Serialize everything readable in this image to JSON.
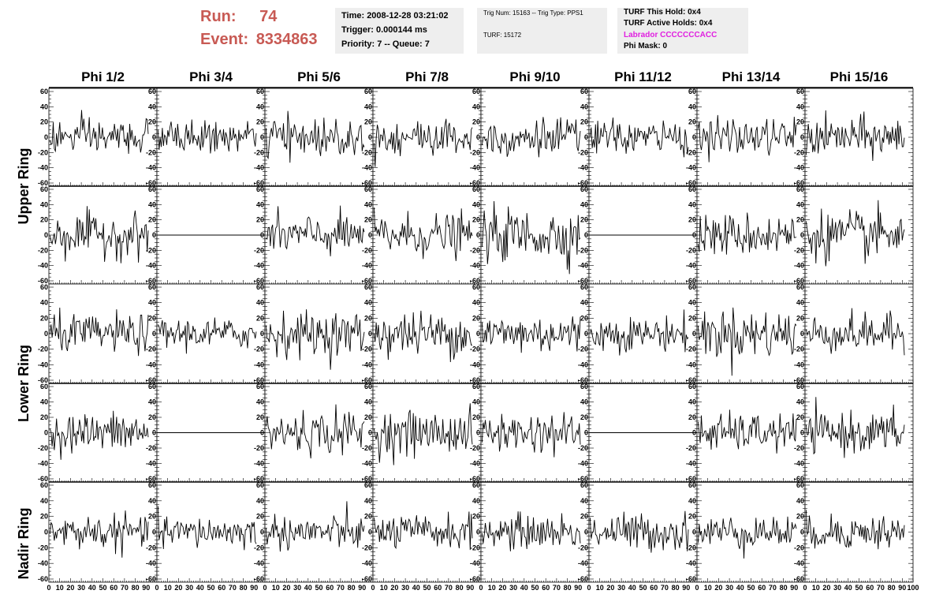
{
  "header": {
    "run_label": "Run:",
    "run_value": "74",
    "event_label": "Event:",
    "event_value": "8334863"
  },
  "info_time": {
    "time": "Time: 2008-12-28 03:21:02",
    "trigger": "Trigger: 0.000144 ms",
    "priority": "Priority: 7 -- Queue: 7"
  },
  "info_trig": {
    "trig": "Trig Num: 15163 -- Trig Type: PPS1",
    "turf": "TURF: 15172"
  },
  "info_turf": {
    "this_hold": "TURF This Hold: 0x4",
    "active_holds": "TURF Active Holds: 0x4",
    "labrador": "Labrador CCCCCCCACC",
    "phi_mask": "Phi Mask: 0"
  },
  "colors": {
    "run": "#c85a54",
    "labrador": "#e020e0",
    "trace": "#000000",
    "info_bg": "#eeeeee"
  },
  "columns": [
    "Phi 1/2",
    "Phi 3/4",
    "Phi 5/6",
    "Phi 7/8",
    "Phi 9/10",
    "Phi 11/12",
    "Phi 13/14",
    "Phi 15/16"
  ],
  "rows": [
    "Upper Ring",
    "Lower Ring",
    "Nadir Ring"
  ],
  "chart_data": {
    "type": "line",
    "layout": "grid of 5 rows x 8 columns of waveform panels",
    "ylim": [
      -60,
      60
    ],
    "xlim": [
      0,
      100
    ],
    "y_ticks": [
      "60",
      "40",
      "20",
      "0",
      "-20",
      "-40",
      "-60"
    ],
    "x_ticks": [
      "0",
      "10",
      "20",
      "30",
      "40",
      "50",
      "60",
      "70",
      "80",
      "90",
      "100"
    ],
    "trace_amplitude_rms": [
      [
        12,
        10,
        13,
        12,
        13,
        11,
        12,
        13
      ],
      [
        14,
        0,
        13,
        14,
        17,
        0,
        14,
        16
      ],
      [
        12,
        10,
        14,
        14,
        13,
        11,
        16,
        12
      ],
      [
        13,
        0,
        14,
        14,
        13,
        0,
        12,
        13
      ],
      [
        11,
        10,
        11,
        11,
        11,
        12,
        11,
        11
      ]
    ],
    "flat_panels": [
      [
        1,
        1
      ],
      [
        1,
        5
      ],
      [
        3,
        1
      ],
      [
        3,
        5
      ]
    ],
    "samples_per_trace": 90
  }
}
